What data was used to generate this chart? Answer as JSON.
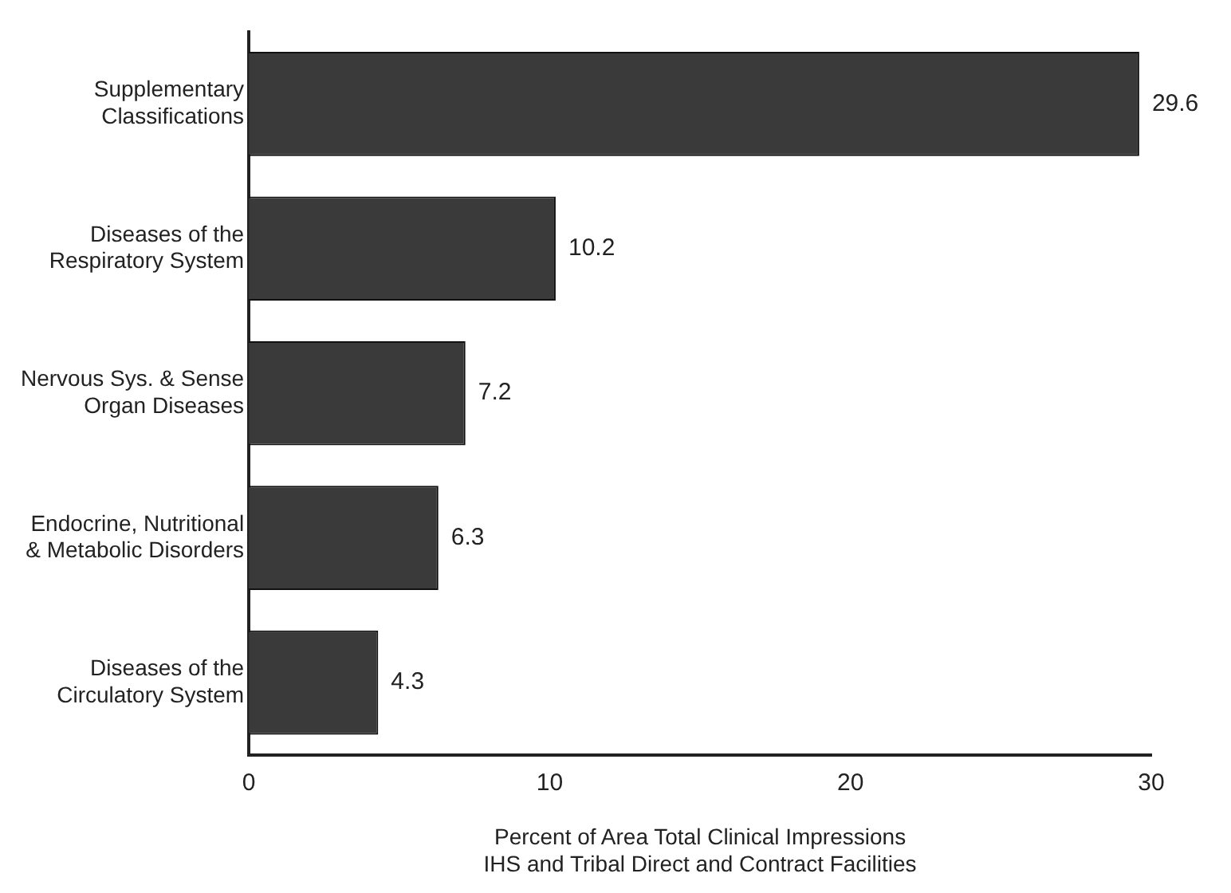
{
  "chart_data": {
    "type": "bar",
    "orientation": "horizontal",
    "categories": [
      "Supplementary Classifications",
      "Diseases of the Respiratory System",
      "Nervous Sys. & Sense Organ Diseases",
      "Endocrine, Nutritional & Metabolic Disorders",
      "Diseases of the Circulatory System"
    ],
    "values": [
      29.6,
      10.2,
      7.2,
      6.3,
      4.3
    ],
    "value_labels": [
      "29.6",
      "10.2",
      "7.2",
      "6.3",
      "4.3"
    ],
    "color": "#3a3a3a",
    "xlim": [
      0,
      30
    ],
    "xticks": [
      0,
      10,
      20,
      30
    ],
    "xlabel": "Percent of Area Total Clinical Impressions\nIHS and Tribal Direct and Contract Facilities",
    "grid": false,
    "legend": false
  }
}
